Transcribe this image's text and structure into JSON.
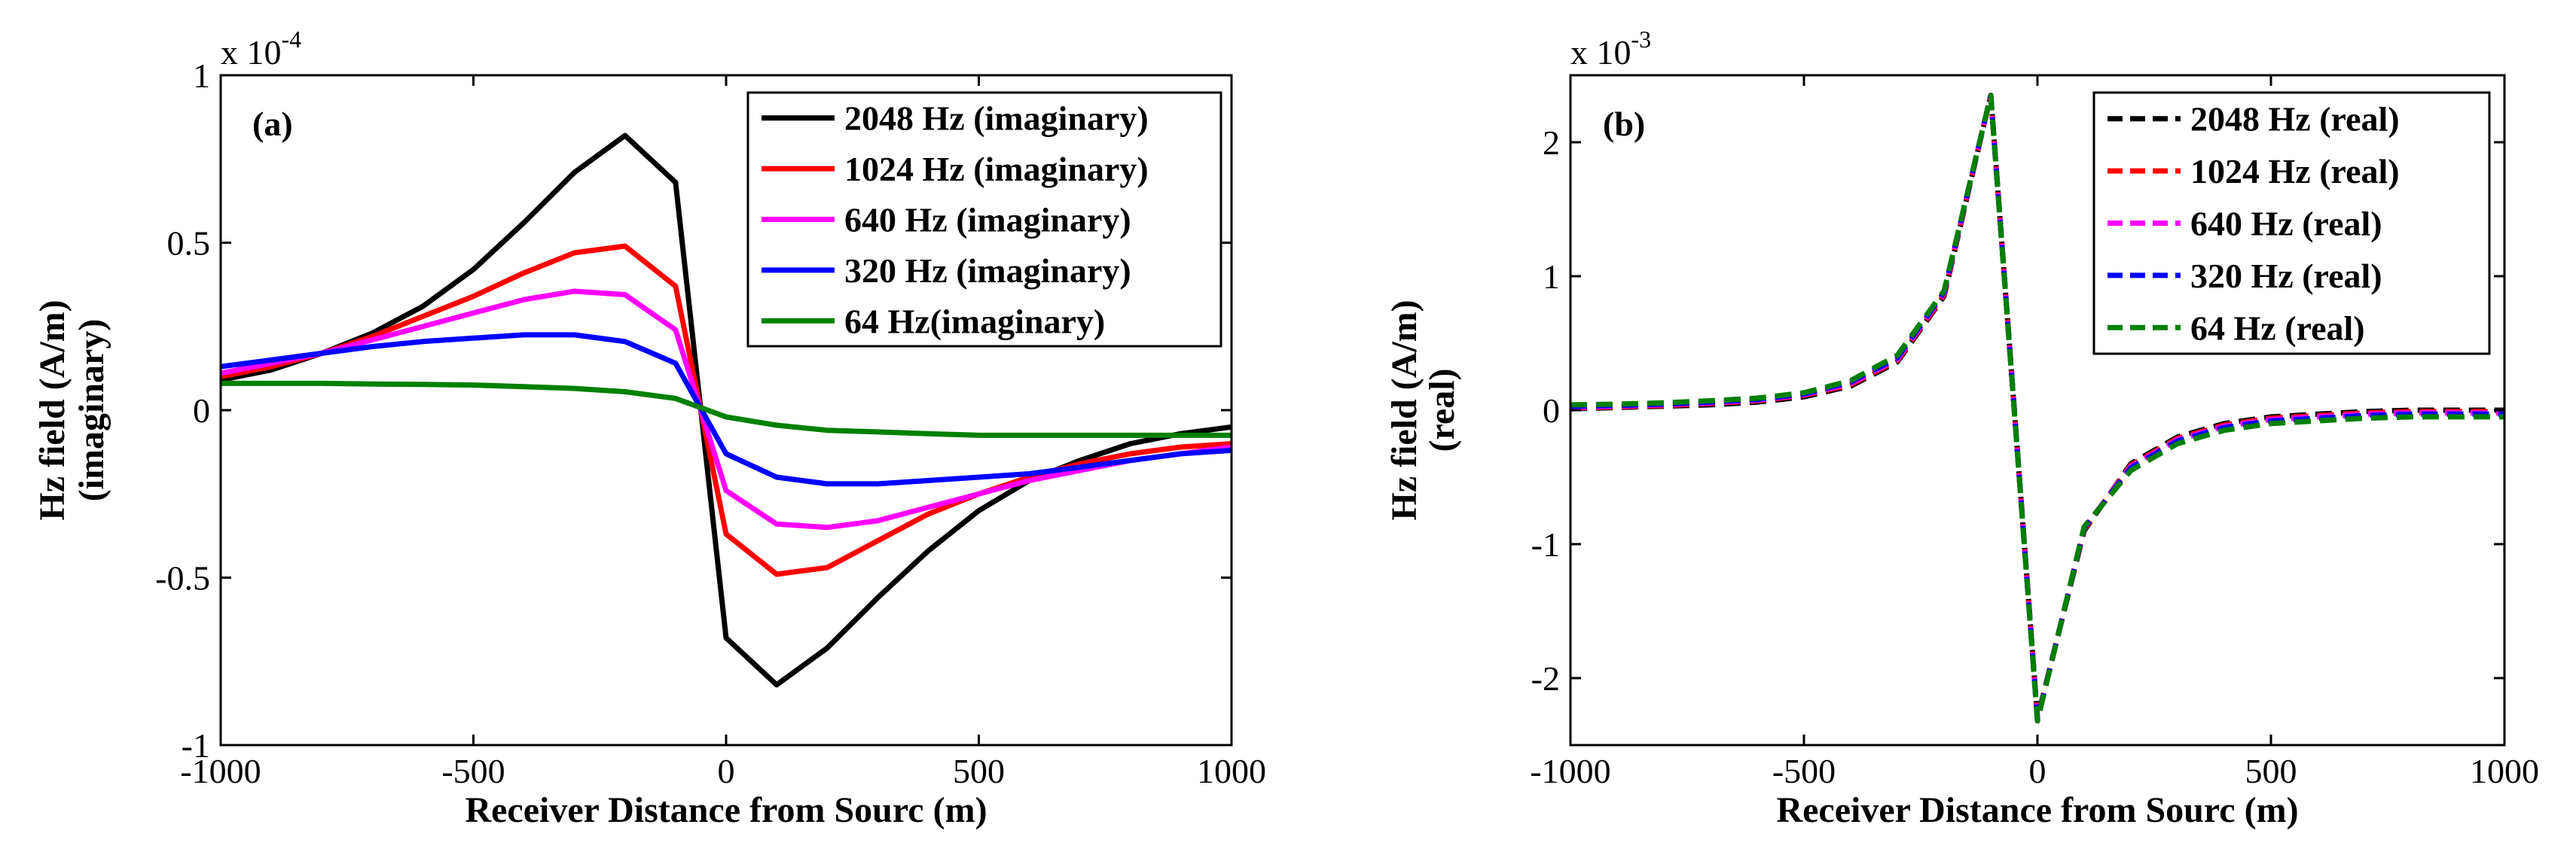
{
  "chart_data": [
    {
      "type": "line",
      "panel_label": "(a)",
      "multiplier": {
        "base": "x 10",
        "exponent": "-4"
      },
      "xlabel": "Receiver Distance from Sourc (m)",
      "ylabel_line1": "Hz field (A/m)",
      "ylabel_line2": "(imaginary)",
      "xlim": [
        -1000,
        1000
      ],
      "ylim": [
        -1,
        1
      ],
      "xticks": [
        -1000,
        -500,
        0,
        500,
        1000
      ],
      "xtick_labels": [
        "-1000",
        "-500",
        "0",
        "500",
        "1000"
      ],
      "yticks": [
        -1,
        -0.5,
        0,
        0.5,
        1
      ],
      "ytick_labels": [
        "-1",
        "-0.5",
        "0",
        "0.5",
        "1"
      ],
      "legend_position": "top-right",
      "x": [
        -1000,
        -900,
        -800,
        -700,
        -600,
        -500,
        -400,
        -300,
        -200,
        -100,
        0,
        100,
        200,
        300,
        400,
        500,
        600,
        700,
        800,
        900,
        1000
      ],
      "series": [
        {
          "name": "2048 Hz (imaginary)",
          "color": "#000000",
          "dash": "solid",
          "values": [
            0.09,
            0.12,
            0.17,
            0.23,
            0.31,
            0.42,
            0.56,
            0.71,
            0.82,
            0.68,
            -0.68,
            -0.82,
            -0.71,
            -0.56,
            -0.42,
            -0.3,
            -0.21,
            -0.15,
            -0.1,
            -0.07,
            -0.05
          ]
        },
        {
          "name": "1024 Hz (imaginary)",
          "color": "#ff0000",
          "dash": "solid",
          "values": [
            0.1,
            0.13,
            0.17,
            0.22,
            0.28,
            0.34,
            0.41,
            0.47,
            0.49,
            0.37,
            -0.37,
            -0.49,
            -0.47,
            -0.39,
            -0.31,
            -0.25,
            -0.2,
            -0.16,
            -0.13,
            -0.11,
            -0.1
          ]
        },
        {
          "name": "640 Hz (imaginary)",
          "color": "#ff00ff",
          "dash": "solid",
          "values": [
            0.11,
            0.14,
            0.17,
            0.21,
            0.25,
            0.29,
            0.33,
            0.355,
            0.345,
            0.24,
            -0.24,
            -0.34,
            -0.35,
            -0.33,
            -0.29,
            -0.25,
            -0.21,
            -0.18,
            -0.15,
            -0.13,
            -0.11
          ]
        },
        {
          "name": "320 Hz (imaginary)",
          "color": "#0000ff",
          "dash": "solid",
          "values": [
            0.13,
            0.15,
            0.17,
            0.19,
            0.205,
            0.215,
            0.225,
            0.225,
            0.205,
            0.14,
            -0.13,
            -0.2,
            -0.22,
            -0.22,
            -0.21,
            -0.2,
            -0.19,
            -0.17,
            -0.15,
            -0.13,
            -0.12
          ]
        },
        {
          "name": "64 Hz(imaginary)",
          "color": "#008000",
          "dash": "solid",
          "values": [
            0.08,
            0.08,
            0.08,
            0.078,
            0.077,
            0.075,
            0.07,
            0.065,
            0.055,
            0.035,
            -0.02,
            -0.045,
            -0.06,
            -0.065,
            -0.07,
            -0.075,
            -0.075,
            -0.075,
            -0.075,
            -0.075,
            -0.075
          ]
        }
      ]
    },
    {
      "type": "line",
      "panel_label": "(b)",
      "multiplier": {
        "base": "x 10",
        "exponent": "-3"
      },
      "xlabel": "Receiver Distance from Sourc (m)",
      "ylabel_line1": "Hz field (A/m)",
      "ylabel_line2": "(real)",
      "xlim": [
        -1000,
        1000
      ],
      "ylim": [
        -2.5,
        2.5
      ],
      "xticks": [
        -1000,
        -500,
        0,
        500,
        1000
      ],
      "xtick_labels": [
        "-1000",
        "-500",
        "0",
        "500",
        "1000"
      ],
      "yticks": [
        -2,
        -1,
        0,
        1,
        2
      ],
      "ytick_labels": [
        "-2",
        "-1",
        "0",
        "1",
        "2"
      ],
      "legend_position": "top-right",
      "x": [
        -1000,
        -900,
        -800,
        -700,
        -600,
        -500,
        -400,
        -300,
        -200,
        -100,
        0,
        100,
        200,
        300,
        400,
        500,
        600,
        700,
        800,
        900,
        1000
      ],
      "series": [
        {
          "name": "2048 Hz (real)",
          "color": "#000000",
          "dash": "dashed",
          "values": [
            0.01,
            0.02,
            0.03,
            0.04,
            0.06,
            0.1,
            0.18,
            0.36,
            0.85,
            2.35,
            -2.3,
            -0.9,
            -0.4,
            -0.2,
            -0.1,
            -0.05,
            -0.03,
            -0.01,
            0.0,
            0.0,
            0.0
          ]
        },
        {
          "name": "1024 Hz (real)",
          "color": "#ff0000",
          "dash": "dashed",
          "values": [
            0.015,
            0.025,
            0.035,
            0.05,
            0.07,
            0.11,
            0.19,
            0.37,
            0.86,
            2.35,
            -2.3,
            -0.89,
            -0.41,
            -0.21,
            -0.11,
            -0.06,
            -0.04,
            -0.02,
            -0.01,
            -0.01,
            -0.01
          ]
        },
        {
          "name": "640 Hz (real)",
          "color": "#ff00ff",
          "dash": "dashed",
          "values": [
            0.02,
            0.03,
            0.04,
            0.055,
            0.075,
            0.115,
            0.2,
            0.38,
            0.87,
            2.35,
            -2.31,
            -0.88,
            -0.42,
            -0.22,
            -0.12,
            -0.07,
            -0.05,
            -0.03,
            -0.02,
            -0.02,
            -0.02
          ]
        },
        {
          "name": "320 Hz (real)",
          "color": "#0000ff",
          "dash": "dashed",
          "values": [
            0.03,
            0.035,
            0.045,
            0.06,
            0.08,
            0.12,
            0.21,
            0.39,
            0.88,
            2.35,
            -2.31,
            -0.88,
            -0.43,
            -0.23,
            -0.13,
            -0.08,
            -0.06,
            -0.04,
            -0.03,
            -0.03,
            -0.03
          ]
        },
        {
          "name": "64 Hz (real)",
          "color": "#008000",
          "dash": "dashed",
          "values": [
            0.04,
            0.045,
            0.055,
            0.07,
            0.09,
            0.13,
            0.22,
            0.41,
            0.89,
            2.35,
            -2.32,
            -0.87,
            -0.45,
            -0.25,
            -0.15,
            -0.1,
            -0.08,
            -0.06,
            -0.05,
            -0.05,
            -0.05
          ]
        }
      ]
    }
  ]
}
